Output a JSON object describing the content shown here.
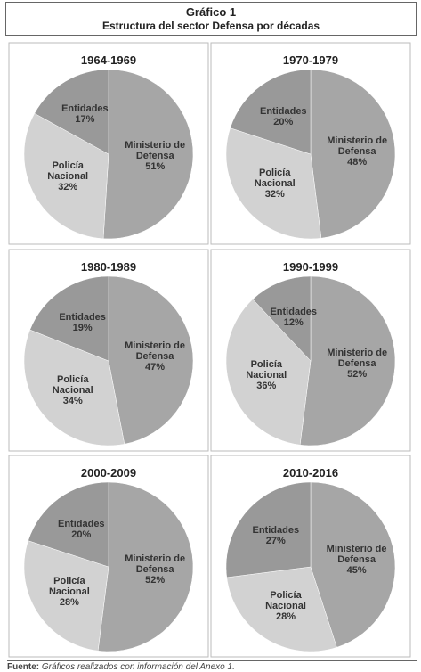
{
  "header": {
    "title": "Gráfico 1",
    "subtitle": "Estructura del sector Defensa por décadas"
  },
  "footer": {
    "label": "Fuente:",
    "text": "Gráficos realizados con información del Anexo 1."
  },
  "chart_data": [
    {
      "type": "pie",
      "title": "1964-1969",
      "categories": [
        "Ministerio de Defensa",
        "Policía Nacional",
        "Entidades"
      ],
      "values": [
        51,
        32,
        17
      ],
      "value_labels": [
        "51%",
        "32%",
        "17%"
      ],
      "colors": [
        "#a6a6a6",
        "#d2d2d2",
        "#999999"
      ]
    },
    {
      "type": "pie",
      "title": "1970-1979",
      "categories": [
        "Ministerio de Defensa",
        "Policía Nacional",
        "Entidades"
      ],
      "values": [
        48,
        32,
        20
      ],
      "value_labels": [
        "48%",
        "32%",
        "20%"
      ],
      "colors": [
        "#a6a6a6",
        "#d2d2d2",
        "#999999"
      ]
    },
    {
      "type": "pie",
      "title": "1980-1989",
      "categories": [
        "Ministerio de Defensa",
        "Policía Nacional",
        "Entidades"
      ],
      "values": [
        47,
        34,
        19
      ],
      "value_labels": [
        "47%",
        "34%",
        "19%"
      ],
      "colors": [
        "#a6a6a6",
        "#d2d2d2",
        "#999999"
      ]
    },
    {
      "type": "pie",
      "title": "1990-1999",
      "categories": [
        "Ministerio de Defensa",
        "Policía Nacional",
        "Entidades"
      ],
      "values": [
        52,
        36,
        12
      ],
      "value_labels": [
        "52%",
        "36%",
        "12%"
      ],
      "colors": [
        "#a6a6a6",
        "#d2d2d2",
        "#999999"
      ]
    },
    {
      "type": "pie",
      "title": "2000-2009",
      "categories": [
        "Ministerio de Defensa",
        "Policía Nacional",
        "Entidades"
      ],
      "values": [
        52,
        28,
        20
      ],
      "value_labels": [
        "52%",
        "28%",
        "20%"
      ],
      "colors": [
        "#a6a6a6",
        "#d2d2d2",
        "#999999"
      ]
    },
    {
      "type": "pie",
      "title": "2010-2016",
      "categories": [
        "Ministerio de Defensa",
        "Policía Nacional",
        "Entidades"
      ],
      "values": [
        45,
        28,
        27
      ],
      "value_labels": [
        "45%",
        "28%",
        "27%"
      ],
      "colors": [
        "#a6a6a6",
        "#d2d2d2",
        "#999999"
      ]
    }
  ]
}
